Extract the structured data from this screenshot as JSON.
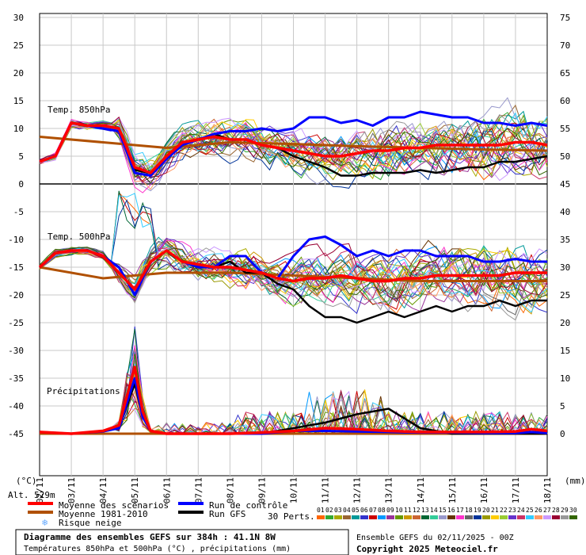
{
  "chart_data": {
    "type": "line",
    "title": "Diagramme des ensembles GEFS sur 384h : 41.1N 8W",
    "subtitle": "Températures 850hPa et 500hPa (°C) , précipitations (mm)",
    "ensemble_info": "Ensemble GEFS du 02/11/2025 - 00Z",
    "copyright": "Copyright 2025 Meteociel.fr",
    "alt_label": "Alt. 529m",
    "left_unit": "(°C)",
    "right_unit": "(mm)",
    "pert_count_label": "30 Perts.",
    "section_labels": {
      "t850": "Temp. 850hPa",
      "t500": "Temp. 500hPa",
      "precip": "Précipitations"
    },
    "y_left": {
      "min": -45,
      "max": 30,
      "step": 5,
      "ticks": [
        "30",
        "25",
        "20",
        "15",
        "10",
        "5",
        "0",
        "-5",
        "-10",
        "-15",
        "-20",
        "-25",
        "-30",
        "-35",
        "-40",
        "-45"
      ]
    },
    "y_right": {
      "ticks": [
        "75",
        "70",
        "65",
        "60",
        "55",
        "50",
        "45",
        "40",
        "35",
        "30",
        "25",
        "20",
        "15",
        "10",
        "5",
        "0"
      ]
    },
    "x_ticks": [
      "02/11",
      "03/11",
      "04/11",
      "05/11",
      "06/11",
      "07/11",
      "08/11",
      "09/11",
      "10/11",
      "11/11",
      "12/11",
      "13/11",
      "14/11",
      "15/11",
      "16/11",
      "17/11",
      "18/11"
    ],
    "x_range_hours": [
      0,
      384
    ],
    "grid": true,
    "legend": [
      {
        "label": "Moyenne des scénarios",
        "color": "#ff0000"
      },
      {
        "label": "Run de contrôle",
        "color": "#0000ff"
      },
      {
        "label": "Moyenne 1981-2010",
        "color": "#b05000"
      },
      {
        "label": "Run GFS",
        "color": "#000000"
      },
      {
        "label": "Risque neige",
        "color": "#66aaff",
        "icon": "snowflake-icon"
      }
    ],
    "perturbations": {
      "labels": [
        "01",
        "02",
        "03",
        "04",
        "05",
        "06",
        "07",
        "08",
        "09",
        "10",
        "11",
        "12",
        "13",
        "14",
        "15",
        "16",
        "17",
        "18",
        "19",
        "20",
        "21",
        "22",
        "23",
        "24",
        "25",
        "26",
        "27",
        "28",
        "29",
        "30"
      ],
      "colors": [
        "#ff6600",
        "#33aa33",
        "#aaaa00",
        "#996633",
        "#009999",
        "#3333cc",
        "#cc0000",
        "#0099ff",
        "#993399",
        "#669900",
        "#cc9900",
        "#cc6633",
        "#006633",
        "#33cc99",
        "#9999cc",
        "#663300",
        "#ff33cc",
        "#666666",
        "#003399",
        "#999900",
        "#ffcc00",
        "#99cc33",
        "#6633cc",
        "#cc3366",
        "#33ccff",
        "#ff9966",
        "#cc99ff",
        "#990033",
        "#999999",
        "#336600"
      ]
    },
    "series": [
      {
        "name": "Moyenne des scénarios",
        "panel": "t850",
        "color": "#ff0000",
        "x": [
          0,
          12,
          24,
          36,
          48,
          60,
          72,
          84,
          96,
          108,
          120,
          132,
          144,
          156,
          168,
          180,
          192,
          204,
          216,
          228,
          240,
          252,
          264,
          276,
          288,
          300,
          312,
          324,
          336,
          348,
          360,
          372,
          384
        ],
        "y": [
          4,
          5,
          11,
          10.5,
          10.5,
          10,
          3,
          2,
          5,
          7.5,
          8,
          8.5,
          8,
          8,
          7,
          6.5,
          6,
          5.5,
          5,
          5,
          5.5,
          6,
          6,
          6.5,
          6.5,
          7,
          7,
          7,
          7,
          7,
          7.5,
          7.5,
          7
        ]
      },
      {
        "name": "Run de contrôle",
        "panel": "t850",
        "color": "#0000ff",
        "x": [
          0,
          12,
          24,
          36,
          48,
          60,
          72,
          84,
          96,
          108,
          120,
          132,
          144,
          156,
          168,
          180,
          192,
          204,
          216,
          228,
          240,
          252,
          264,
          276,
          288,
          300,
          312,
          324,
          336,
          348,
          360,
          372,
          384
        ],
        "y": [
          4,
          5,
          11,
          10.5,
          10,
          9.5,
          2,
          1.5,
          4.5,
          7,
          8,
          9,
          9.5,
          9.5,
          10,
          9.5,
          10,
          12,
          12,
          11,
          11.5,
          10.5,
          12,
          12,
          13,
          12.5,
          12,
          12,
          11,
          11,
          10.5,
          11,
          10.5
        ]
      },
      {
        "name": "Run GFS",
        "panel": "t850",
        "color": "#000000",
        "x": [
          0,
          12,
          24,
          36,
          48,
          60,
          72,
          84,
          96,
          108,
          120,
          132,
          144,
          156,
          168,
          180,
          192,
          204,
          216,
          228,
          240,
          252,
          264,
          276,
          288,
          300,
          312,
          324,
          336,
          348,
          360,
          372,
          384
        ],
        "y": [
          4,
          5,
          11,
          10.5,
          10,
          9.5,
          2.5,
          2,
          5,
          7,
          8,
          9,
          8,
          8,
          7,
          6.5,
          5,
          4,
          3,
          1.5,
          1.5,
          2,
          2,
          2,
          2.5,
          2,
          2.5,
          3,
          3,
          4,
          4,
          4.5,
          5
        ]
      },
      {
        "name": "Moyenne 1981-2010",
        "panel": "t850",
        "color": "#b05000",
        "x": [
          0,
          48,
          96,
          144,
          192,
          240,
          288,
          336,
          384
        ],
        "y": [
          8.5,
          7.5,
          6.5,
          7.5,
          7.2,
          6.8,
          6.5,
          6.2,
          6
        ]
      },
      {
        "name": "Moyenne des scénarios",
        "panel": "t500",
        "color": "#ff0000",
        "x": [
          0,
          12,
          24,
          36,
          48,
          60,
          72,
          84,
          96,
          108,
          120,
          132,
          144,
          156,
          168,
          180,
          192,
          204,
          216,
          228,
          240,
          252,
          264,
          276,
          288,
          300,
          312,
          324,
          336,
          348,
          360,
          372,
          384
        ],
        "y": [
          -15,
          -12.5,
          -12,
          -12,
          -13,
          -16,
          -19,
          -14,
          -12,
          -14,
          -14.5,
          -15,
          -15,
          -15.5,
          -16,
          -17,
          -17.5,
          -17,
          -17,
          -16.5,
          -17,
          -17.5,
          -17.5,
          -17,
          -17,
          -16.5,
          -16.5,
          -16.5,
          -16.5,
          -16.5,
          -16,
          -16,
          -16
        ]
      },
      {
        "name": "Run de contrôle",
        "panel": "t500",
        "color": "#0000ff",
        "x": [
          0,
          12,
          24,
          36,
          48,
          60,
          72,
          84,
          96,
          108,
          120,
          132,
          144,
          156,
          168,
          180,
          192,
          204,
          216,
          228,
          240,
          252,
          264,
          276,
          288,
          300,
          312,
          324,
          336,
          348,
          360,
          372,
          384
        ],
        "y": [
          -15,
          -12.5,
          -12,
          -12,
          -13,
          -15,
          -20,
          -14,
          -12,
          -14,
          -15,
          -15,
          -13,
          -13,
          -16,
          -17,
          -13,
          -10,
          -9.5,
          -11,
          -13,
          -12,
          -13,
          -12,
          -12,
          -13,
          -13,
          -13,
          -14,
          -14,
          -13.5,
          -14,
          -14
        ]
      },
      {
        "name": "Run GFS",
        "panel": "t500",
        "color": "#000000",
        "x": [
          0,
          12,
          24,
          36,
          48,
          60,
          72,
          84,
          96,
          108,
          120,
          132,
          144,
          156,
          168,
          180,
          192,
          204,
          216,
          228,
          240,
          252,
          264,
          276,
          288,
          300,
          312,
          324,
          336,
          348,
          360,
          372,
          384
        ],
        "y": [
          -15,
          -12.5,
          -12,
          -12,
          -13,
          -15,
          -20,
          -14,
          -12,
          -14,
          -15,
          -15,
          -14,
          -16,
          -16,
          -18,
          -19,
          -22,
          -24,
          -24,
          -25,
          -24,
          -23,
          -24,
          -23,
          -22,
          -23,
          -22,
          -22,
          -21,
          -22,
          -21,
          -21
        ]
      },
      {
        "name": "Moyenne 1981-2010",
        "panel": "t500",
        "color": "#b05000",
        "x": [
          0,
          48,
          96,
          144,
          192,
          240,
          288,
          336,
          384
        ],
        "y": [
          -15,
          -17,
          -16,
          -16,
          -16.5,
          -17,
          -17.5,
          -17.5,
          -17.5
        ]
      },
      {
        "name": "Moyenne des scénarios",
        "panel": "precip",
        "color": "#ff0000",
        "unit": "mm",
        "x": [
          0,
          24,
          48,
          60,
          72,
          78,
          84,
          96,
          120,
          144,
          168,
          192,
          216,
          240,
          264,
          288,
          312,
          336,
          360,
          372,
          384
        ],
        "y": [
          0.3,
          0,
          0.5,
          1.5,
          12,
          4,
          0.5,
          0,
          0,
          0,
          0.2,
          0.5,
          1,
          0.8,
          0.5,
          0.3,
          0.3,
          0.3,
          0.4,
          0.8,
          0.5
        ]
      },
      {
        "name": "Run de contrôle",
        "panel": "precip",
        "color": "#0000ff",
        "unit": "mm",
        "x": [
          0,
          24,
          48,
          60,
          72,
          78,
          84,
          96,
          120,
          144,
          168,
          192,
          216,
          240,
          264,
          288,
          312,
          336,
          360,
          372,
          384
        ],
        "y": [
          0.3,
          0,
          0.4,
          1,
          10,
          3,
          0.5,
          0,
          0,
          0,
          0,
          0.5,
          0.5,
          0.4,
          0.3,
          0.2,
          0.2,
          0.1,
          0.1,
          0.3,
          0.1
        ]
      },
      {
        "name": "Run GFS",
        "panel": "precip",
        "color": "#000000",
        "unit": "mm",
        "x": [
          0,
          24,
          48,
          60,
          72,
          78,
          84,
          96,
          120,
          144,
          168,
          192,
          216,
          240,
          264,
          288,
          312,
          336,
          360,
          372,
          384
        ],
        "y": [
          0.3,
          0,
          0.4,
          1,
          9,
          3,
          0.5,
          0,
          0,
          0,
          0,
          1,
          2,
          3.5,
          4.5,
          1,
          0,
          0,
          0,
          0,
          0
        ]
      },
      {
        "name": "Moyenne 1981-2010",
        "panel": "precip",
        "color": "#b05000",
        "unit": "mm",
        "x": [
          0,
          384
        ],
        "y": [
          0,
          0
        ]
      }
    ]
  }
}
